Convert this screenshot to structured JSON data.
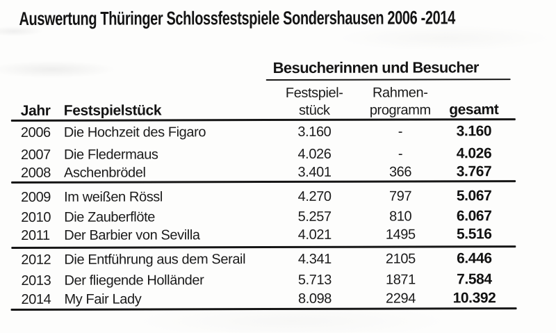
{
  "page": {
    "title": "Auswertung Thüringer Schlossfestspiele Sondershausen 2006 -2014"
  },
  "table": {
    "group_header": "Besucherinnen und Besucher",
    "headers": {
      "jahr": "Jahr",
      "festspielstueck": "Festspielstück",
      "col_festspielstueck_line1": "Festspiel-",
      "col_festspielstueck_line2": "stück",
      "col_rahmenprogramm_line1": "Rahmen-",
      "col_rahmenprogramm_line2": "programm",
      "col_gesamt": "gesamt"
    },
    "rows": [
      {
        "jahr": "2006",
        "stueck": "Die Hochzeit des Figaro",
        "festspielstueck": "3.160",
        "rahmenprogramm": "-",
        "gesamt": "3.160"
      },
      {
        "jahr": "2007",
        "stueck": "Die Fledermaus",
        "festspielstueck": "4.026",
        "rahmenprogramm": "-",
        "gesamt": "4.026"
      },
      {
        "jahr": "2008",
        "stueck": "Aschenbrödel",
        "festspielstueck": "3.401",
        "rahmenprogramm": "366",
        "gesamt": "3.767"
      },
      {
        "jahr": "2009",
        "stueck": "Im weißen Rössl",
        "festspielstueck": "4.270",
        "rahmenprogramm": "797",
        "gesamt": "5.067"
      },
      {
        "jahr": "2010",
        "stueck": "Die Zauberflöte",
        "festspielstueck": "5.257",
        "rahmenprogramm": "810",
        "gesamt": "6.067"
      },
      {
        "jahr": "2011",
        "stueck": "Der Barbier von Sevilla",
        "festspielstueck": "4.021",
        "rahmenprogramm": "1495",
        "gesamt": "5.516"
      },
      {
        "jahr": "2012",
        "stueck": "Die Entführung aus dem Serail",
        "festspielstueck": "4.341",
        "rahmenprogramm": "2105",
        "gesamt": "6.446"
      },
      {
        "jahr": "2013",
        "stueck": "Der fliegende Holländer",
        "festspielstueck": "5.713",
        "rahmenprogramm": "1871",
        "gesamt": "7.584"
      },
      {
        "jahr": "2014",
        "stueck": "My Fair Lady",
        "festspielstueck": "8.098",
        "rahmenprogramm": "2294",
        "gesamt": "10.392"
      }
    ],
    "colors": {
      "text": "#1a1a1a",
      "rule": "#161616",
      "background": "#fdfdfc"
    }
  }
}
